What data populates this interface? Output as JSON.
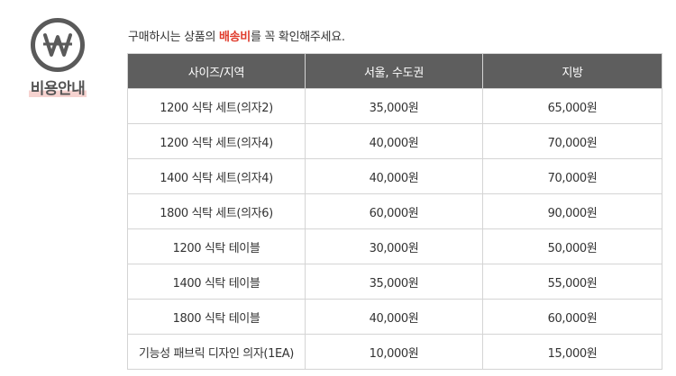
{
  "badge": {
    "icon": "won-icon",
    "label": "비용안내"
  },
  "intro": {
    "prefix": "구매하시는 상품의 ",
    "highlight": "배송비",
    "suffix": "를 꼭 확인해주세요.",
    "highlight_color": "#e03b2c"
  },
  "table": {
    "headers": [
      "사이즈/지역",
      "서울, 수도권",
      "지방"
    ],
    "rows": [
      [
        "1200 식탁 세트(의자2)",
        "35,000원",
        "65,000원"
      ],
      [
        "1200 식탁 세트(의자4)",
        "40,000원",
        "70,000원"
      ],
      [
        "1400 식탁 세트(의자4)",
        "40,000원",
        "70,000원"
      ],
      [
        "1800 식탁 세트(의자6)",
        "60,000원",
        "90,000원"
      ],
      [
        "1200 식탁 테이블",
        "30,000원",
        "50,000원"
      ],
      [
        "1400 식탁 테이블",
        "35,000원",
        "55,000원"
      ],
      [
        "1800 식탁 테이블",
        "40,000원",
        "60,000원"
      ],
      [
        "기능성 패브릭 디자인 의자(1EA)",
        "10,000원",
        "15,000원"
      ]
    ]
  }
}
